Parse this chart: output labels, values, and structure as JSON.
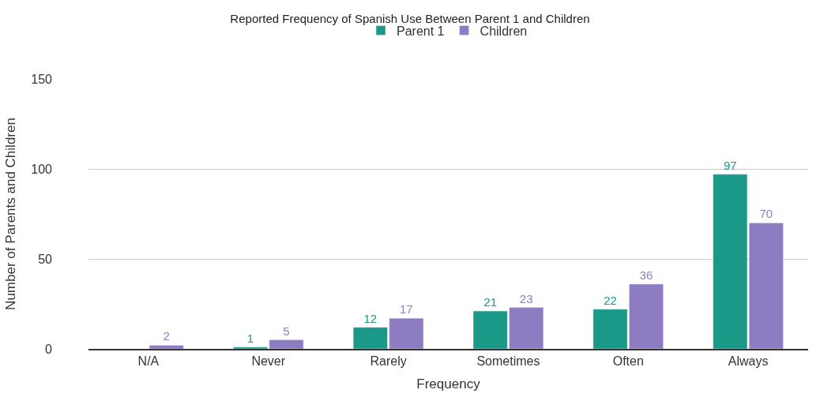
{
  "chart_data": {
    "type": "bar",
    "title": "Reported Frequency of Spanish Use Between Parent 1 and Children",
    "xlabel": "Frequency",
    "ylabel": "Number of Parents and Children",
    "categories": [
      "N/A",
      "Never",
      "Rarely",
      "Sometimes",
      "Often",
      "Always"
    ],
    "series": [
      {
        "name": "Parent 1",
        "color": "#1a9988",
        "values": [
          null,
          1,
          12,
          21,
          22,
          97
        ]
      },
      {
        "name": "Children",
        "color": "#8e7cc3",
        "values": [
          2,
          5,
          17,
          23,
          36,
          70
        ]
      }
    ],
    "ylim": [
      0,
      150
    ],
    "yticks": [
      0,
      50,
      100,
      150
    ],
    "grid": "y",
    "legend": "top",
    "data_labels": true
  }
}
